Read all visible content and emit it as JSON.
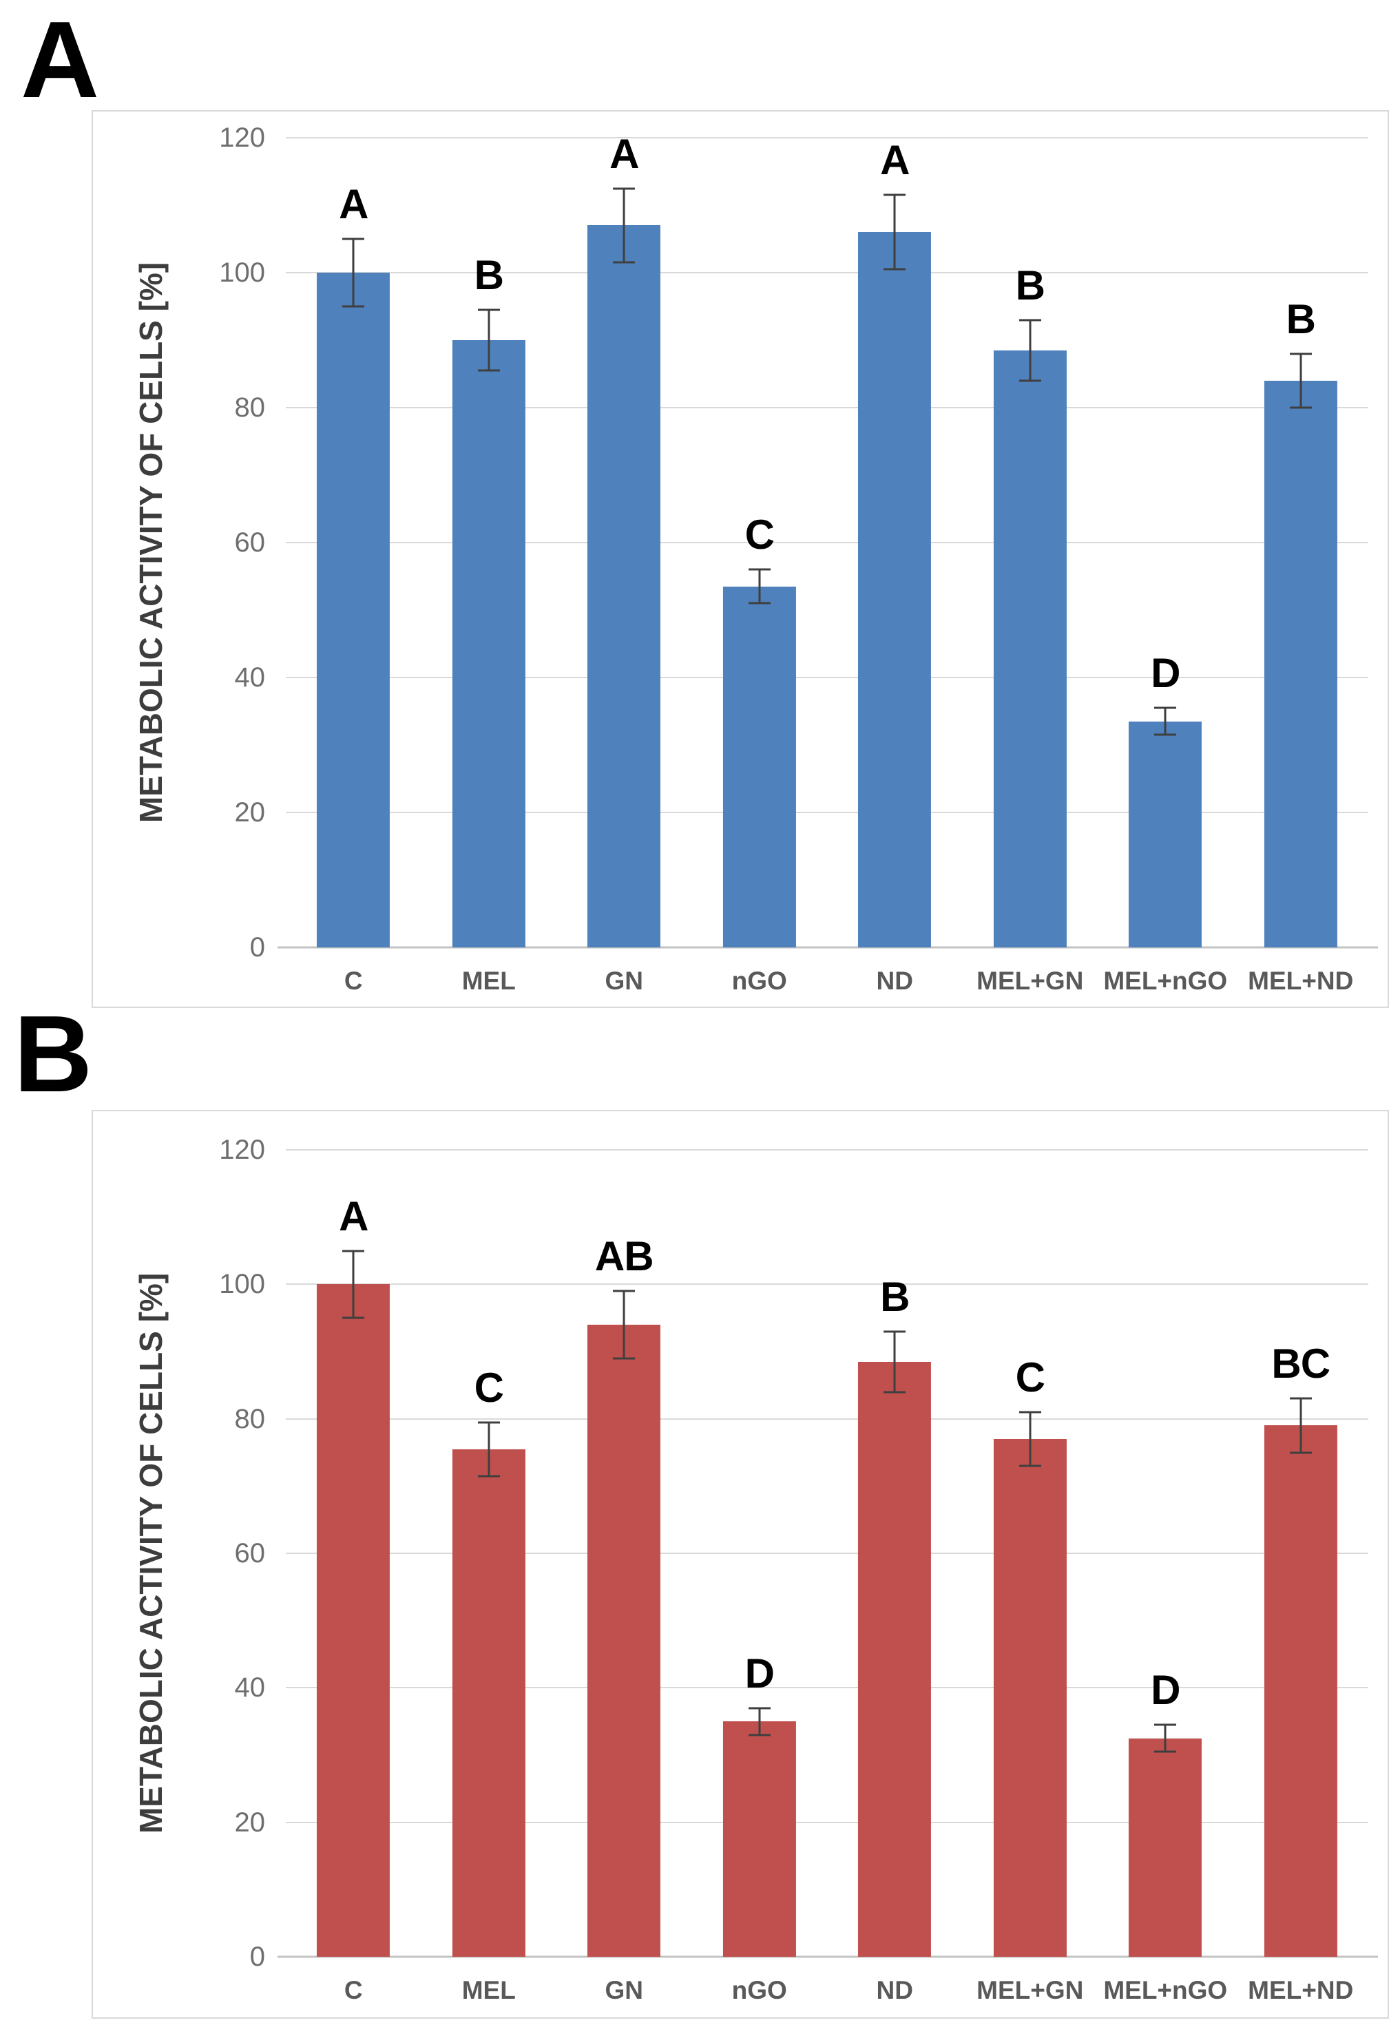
{
  "figure": {
    "background": "#ffffff"
  },
  "chart_data": [
    {
      "type": "bar",
      "panel_label": "A",
      "title": "",
      "xlabel": "",
      "ylabel": "METABOLIC ACTIVITY OF CELLS [%]",
      "ylim": [
        0,
        120
      ],
      "ytick_step": 20,
      "grid": true,
      "legend": "none",
      "bar_color": "#4F81BD",
      "error_bar_color": "#3f3f3f",
      "categories": [
        "C",
        "MEL",
        "GN",
        "nGO",
        "ND",
        "MEL+GN",
        "MEL+nGO",
        "MEL+ND"
      ],
      "values": [
        100,
        90,
        107,
        53.5,
        106,
        88.5,
        33.5,
        84
      ],
      "errors": [
        5,
        4.5,
        5.5,
        2.5,
        5.5,
        4.5,
        2,
        4
      ],
      "significance_letters": [
        "A",
        "B",
        "A",
        "C",
        "A",
        "B",
        "D",
        "B"
      ]
    },
    {
      "type": "bar",
      "panel_label": "B",
      "title": "",
      "xlabel": "",
      "ylabel": "METABOLIC ACTIVITY OF CELLS [%]",
      "ylim": [
        0,
        120
      ],
      "ytick_step": 20,
      "grid": true,
      "legend": "none",
      "bar_color": "#C0504D",
      "error_bar_color": "#3f3f3f",
      "categories": [
        "C",
        "MEL",
        "GN",
        "nGO",
        "ND",
        "MEL+GN",
        "MEL+nGO",
        "MEL+ND"
      ],
      "values": [
        100,
        75.5,
        94,
        35,
        88.5,
        77,
        32.5,
        79
      ],
      "errors": [
        5,
        4,
        5,
        2,
        4.5,
        4,
        2,
        4
      ],
      "significance_letters": [
        "A",
        "C",
        "AB",
        "D",
        "B",
        "C",
        "D",
        "BC"
      ]
    }
  ]
}
